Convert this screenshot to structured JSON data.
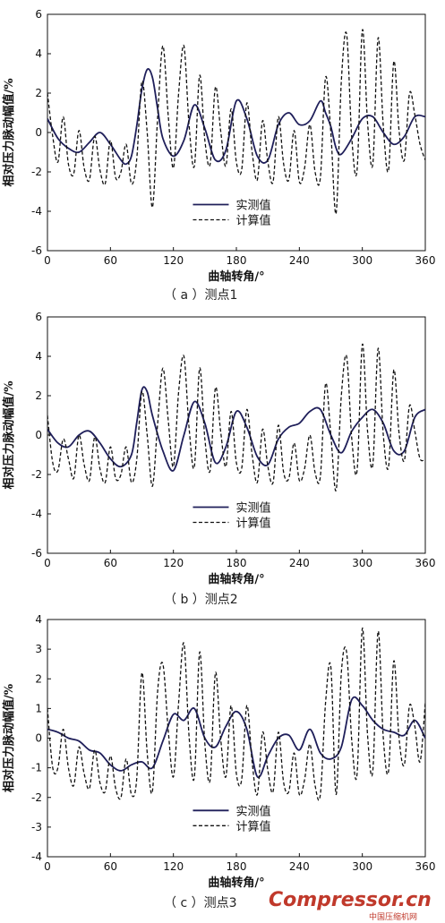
{
  "figure": {
    "panels": [
      {
        "caption": "（ a ）测点1"
      },
      {
        "caption": "（ b ）测点2"
      },
      {
        "caption": "（ c ）测点3"
      }
    ],
    "watermark": {
      "brand": "Compressor.cn",
      "subtitle": "中国压缩机网"
    }
  },
  "chart_data": [
    {
      "type": "line",
      "xlabel": "曲轴转角/°",
      "ylabel": "相对压力脉动幅值/%",
      "xlim": [
        0,
        360
      ],
      "ylim": [
        -6,
        6
      ],
      "xticks": [
        0,
        60,
        120,
        180,
        240,
        300,
        360
      ],
      "yticks": [
        -6,
        -4,
        -2,
        0,
        2,
        4,
        6
      ],
      "grid": false,
      "legend_position": "center",
      "series": [
        {
          "name": "实测值",
          "style": "solid",
          "color": "#1f1f5a",
          "x": [
            0,
            10,
            20,
            30,
            40,
            50,
            60,
            70,
            75,
            80,
            85,
            90,
            95,
            100,
            105,
            110,
            120,
            130,
            140,
            150,
            160,
            170,
            180,
            190,
            200,
            210,
            220,
            230,
            240,
            250,
            260,
            265,
            270,
            275,
            280,
            290,
            300,
            310,
            320,
            330,
            340,
            350,
            360
          ],
          "y": [
            0.7,
            -0.3,
            -0.8,
            -1.0,
            -0.5,
            0.0,
            -0.6,
            -1.4,
            -1.6,
            -1.2,
            0.3,
            2.2,
            3.2,
            2.8,
            1.2,
            -0.3,
            -1.2,
            -0.4,
            1.4,
            0.2,
            -1.4,
            -0.9,
            1.6,
            0.7,
            -1.2,
            -1.4,
            0.4,
            1.0,
            0.4,
            0.6,
            1.6,
            1.0,
            0.3,
            -0.8,
            -1.1,
            -0.3,
            0.7,
            0.8,
            0.0,
            -0.6,
            -0.2,
            0.8,
            0.8
          ]
        },
        {
          "name": "计算值",
          "style": "dashed",
          "color": "#111111",
          "x": [
            0,
            5,
            10,
            15,
            20,
            25,
            30,
            35,
            40,
            45,
            50,
            55,
            60,
            65,
            70,
            75,
            80,
            85,
            90,
            95,
            100,
            105,
            110,
            115,
            120,
            125,
            130,
            135,
            140,
            145,
            150,
            155,
            160,
            165,
            170,
            175,
            180,
            185,
            190,
            195,
            200,
            205,
            210,
            215,
            220,
            225,
            230,
            235,
            240,
            245,
            250,
            255,
            260,
            265,
            270,
            275,
            280,
            285,
            290,
            295,
            300,
            305,
            310,
            315,
            320,
            325,
            330,
            335,
            340,
            345,
            350,
            355,
            360
          ],
          "y": [
            2.0,
            -0.2,
            -1.5,
            0.8,
            -1.6,
            -2.1,
            0.1,
            -1.8,
            -2.4,
            -0.2,
            -1.9,
            -2.6,
            -0.4,
            -2.3,
            -2.0,
            -0.6,
            -2.6,
            -1.4,
            2.6,
            0.0,
            -3.8,
            0.8,
            4.4,
            0.9,
            -1.8,
            2.0,
            4.4,
            0.3,
            -1.7,
            2.9,
            -0.4,
            -1.6,
            2.3,
            0.1,
            -1.7,
            1.2,
            -1.5,
            -1.9,
            1.5,
            -1.0,
            -2.4,
            0.6,
            -1.5,
            -2.5,
            0.8,
            -1.6,
            -2.4,
            0.1,
            -2.5,
            -1.8,
            0.4,
            -2.0,
            -2.3,
            2.8,
            0.0,
            -4.1,
            2.6,
            5.0,
            -0.3,
            -1.9,
            5.2,
            0.5,
            -1.6,
            4.8,
            0.3,
            -1.9,
            3.6,
            0.1,
            -1.4,
            2.0,
            0.9,
            -0.6,
            -1.4
          ]
        }
      ]
    },
    {
      "type": "line",
      "xlabel": "曲轴转角/°",
      "ylabel": "相对压力脉动幅值/%",
      "xlim": [
        0,
        360
      ],
      "ylim": [
        -6,
        6
      ],
      "xticks": [
        0,
        60,
        120,
        180,
        240,
        300,
        360
      ],
      "yticks": [
        -6,
        -4,
        -2,
        0,
        2,
        4,
        6
      ],
      "grid": false,
      "legend_position": "center",
      "series": [
        {
          "name": "实测值",
          "style": "solid",
          "color": "#1f1f5a",
          "x": [
            0,
            10,
            20,
            30,
            40,
            50,
            60,
            70,
            80,
            85,
            90,
            95,
            100,
            110,
            120,
            130,
            140,
            150,
            160,
            170,
            180,
            190,
            200,
            210,
            220,
            230,
            240,
            250,
            260,
            270,
            280,
            290,
            300,
            310,
            320,
            330,
            340,
            350,
            360
          ],
          "y": [
            0.3,
            -0.4,
            -0.6,
            0.0,
            0.2,
            -0.4,
            -1.2,
            -1.6,
            -1.0,
            0.6,
            2.3,
            2.2,
            1.0,
            -0.8,
            -1.8,
            0.0,
            1.7,
            0.6,
            -1.4,
            -0.6,
            1.2,
            0.4,
            -1.1,
            -1.5,
            -0.2,
            0.4,
            0.6,
            1.2,
            1.3,
            0.0,
            -0.9,
            0.2,
            0.9,
            1.3,
            0.6,
            -0.8,
            -0.8,
            0.9,
            1.3
          ]
        },
        {
          "name": "计算值",
          "style": "dashed",
          "color": "#111111",
          "x": [
            0,
            5,
            10,
            15,
            20,
            25,
            30,
            35,
            40,
            45,
            50,
            55,
            60,
            65,
            70,
            75,
            80,
            85,
            90,
            95,
            100,
            105,
            110,
            115,
            120,
            125,
            130,
            135,
            140,
            145,
            150,
            155,
            160,
            165,
            170,
            175,
            180,
            185,
            190,
            195,
            200,
            205,
            210,
            215,
            220,
            225,
            230,
            235,
            240,
            245,
            250,
            255,
            260,
            265,
            270,
            275,
            280,
            285,
            290,
            295,
            300,
            305,
            310,
            315,
            320,
            325,
            330,
            335,
            340,
            345,
            350,
            355,
            360
          ],
          "y": [
            1.0,
            -1.4,
            -1.8,
            -0.2,
            -1.2,
            -2.2,
            0.0,
            -1.5,
            -2.3,
            -0.1,
            -1.7,
            -2.4,
            -0.6,
            -2.2,
            -2.0,
            -0.6,
            -2.4,
            -1.3,
            2.2,
            0.0,
            -2.6,
            0.6,
            3.4,
            0.8,
            -1.6,
            2.2,
            4.0,
            0.3,
            -1.6,
            3.4,
            -0.2,
            -1.8,
            2.4,
            0.2,
            -1.6,
            1.2,
            -1.4,
            -1.7,
            1.3,
            -1.0,
            -2.4,
            0.3,
            -1.6,
            -2.4,
            0.5,
            -1.9,
            -2.2,
            -0.4,
            -2.3,
            -1.7,
            0.0,
            -1.9,
            -2.1,
            2.6,
            0.0,
            -2.8,
            2.0,
            4.0,
            -0.2,
            -1.8,
            4.6,
            0.2,
            -1.5,
            4.4,
            0.0,
            -1.6,
            3.3,
            0.1,
            -1.3,
            1.5,
            0.2,
            -1.2,
            -1.2
          ]
        }
      ]
    },
    {
      "type": "line",
      "xlabel": "曲轴转角/°",
      "ylabel": "相对压力脉动幅值/%",
      "xlim": [
        0,
        360
      ],
      "ylim": [
        -4,
        4
      ],
      "xticks": [
        0,
        60,
        120,
        180,
        240,
        300,
        360
      ],
      "yticks": [
        -4,
        -3,
        -2,
        -1,
        0,
        1,
        2,
        3,
        4
      ],
      "grid": false,
      "legend_position": "bottom-center",
      "series": [
        {
          "name": "实测值",
          "style": "solid",
          "color": "#1f1f5a",
          "x": [
            0,
            10,
            20,
            30,
            40,
            50,
            60,
            70,
            80,
            90,
            100,
            110,
            120,
            130,
            140,
            150,
            160,
            170,
            180,
            190,
            200,
            210,
            220,
            230,
            240,
            250,
            260,
            270,
            280,
            290,
            300,
            310,
            320,
            330,
            340,
            350,
            360
          ],
          "y": [
            0.3,
            0.2,
            0.0,
            -0.1,
            -0.4,
            -0.5,
            -0.9,
            -1.1,
            -0.9,
            -0.8,
            -1.0,
            -0.1,
            0.8,
            0.6,
            1.0,
            0.0,
            -0.3,
            0.4,
            0.9,
            0.3,
            -1.3,
            -0.6,
            0.0,
            0.1,
            -0.4,
            0.3,
            -0.5,
            -0.7,
            -0.3,
            1.3,
            1.1,
            0.6,
            0.3,
            0.2,
            0.1,
            0.6,
            0.0
          ]
        },
        {
          "name": "计算值",
          "style": "dashed",
          "color": "#111111",
          "x": [
            0,
            5,
            10,
            15,
            20,
            25,
            30,
            35,
            40,
            45,
            50,
            55,
            60,
            65,
            70,
            75,
            80,
            85,
            90,
            95,
            100,
            105,
            110,
            115,
            120,
            125,
            130,
            135,
            140,
            145,
            150,
            155,
            160,
            165,
            170,
            175,
            180,
            185,
            190,
            195,
            200,
            205,
            210,
            215,
            220,
            225,
            230,
            235,
            240,
            245,
            250,
            255,
            260,
            265,
            270,
            275,
            280,
            285,
            290,
            295,
            300,
            305,
            310,
            315,
            320,
            325,
            330,
            335,
            340,
            345,
            350,
            355,
            360
          ],
          "y": [
            1.0,
            -1.0,
            -1.0,
            0.3,
            -1.0,
            -1.6,
            -0.3,
            -1.2,
            -1.7,
            -0.4,
            -1.5,
            -1.8,
            -0.6,
            -1.7,
            -2.0,
            -0.7,
            -1.9,
            -1.4,
            2.2,
            -0.5,
            -1.8,
            1.6,
            2.5,
            0.3,
            -1.3,
            1.2,
            3.2,
            0.0,
            -1.3,
            2.9,
            -0.2,
            -1.4,
            2.2,
            0.0,
            -1.3,
            1.1,
            -1.2,
            -1.4,
            1.1,
            -0.8,
            -1.9,
            0.2,
            -1.1,
            -1.8,
            0.2,
            -1.5,
            -1.8,
            -0.5,
            -1.9,
            -1.4,
            -0.2,
            -1.6,
            -1.9,
            1.2,
            2.4,
            -1.9,
            2.2,
            2.9,
            -0.1,
            -1.2,
            3.7,
            0.1,
            -1.1,
            3.6,
            0.0,
            -1.1,
            2.6,
            0.0,
            -0.9,
            1.1,
            0.4,
            -0.8,
            1.2
          ]
        }
      ]
    }
  ]
}
